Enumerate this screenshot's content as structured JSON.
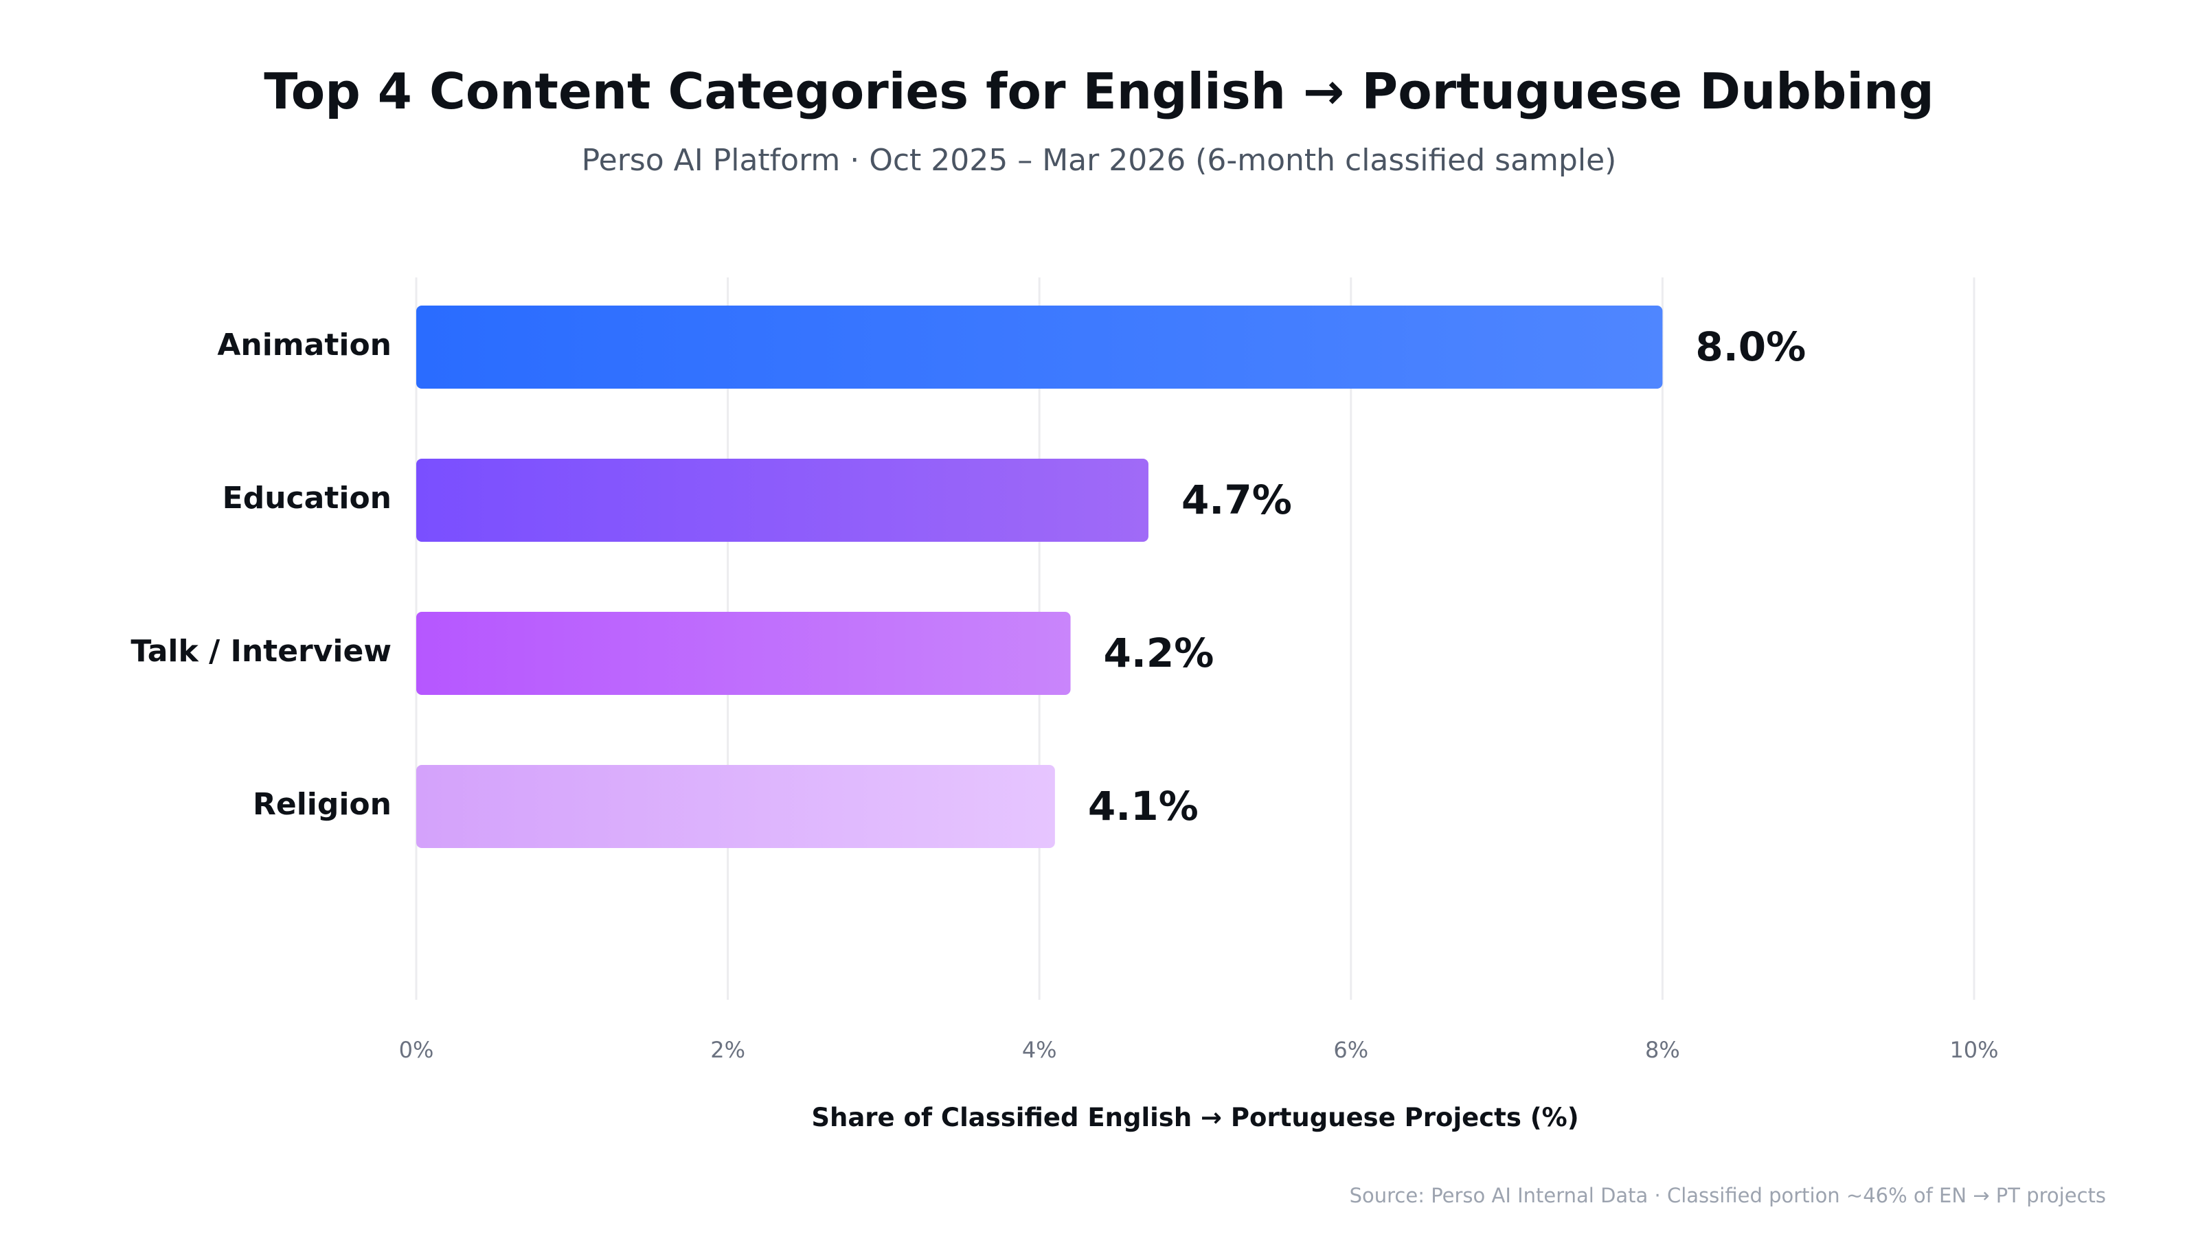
{
  "chart_data": {
    "type": "bar",
    "orientation": "horizontal",
    "title": "Top 4 Content Categories for English → Portuguese Dubbing",
    "subtitle": "Perso AI Platform · Oct 2025 – Mar 2026 (6-month classified sample)",
    "categories": [
      "Animation",
      "Education",
      "Talk / Interview",
      "Religion"
    ],
    "values": [
      8.0,
      4.7,
      4.2,
      4.1
    ],
    "value_labels": [
      "8.0%",
      "4.7%",
      "4.2%",
      "4.1%"
    ],
    "xlabel": "Share of Classified English → Portuguese Projects (%)",
    "ylabel": "",
    "xlim": [
      0,
      10
    ],
    "xticks": [
      0,
      2,
      4,
      6,
      8,
      10
    ],
    "xtick_labels": [
      "0%",
      "2%",
      "4%",
      "6%",
      "8%",
      "10%"
    ],
    "grid": "vertical",
    "bar_gradients": [
      [
        "#2a6cff",
        "#4f86ff"
      ],
      [
        "#7a4fff",
        "#a06af7"
      ],
      [
        "#b657ff",
        "#c985fb"
      ],
      [
        "#d4a2fb",
        "#e6c5ff"
      ]
    ],
    "source": "Source: Perso AI Internal Data · Classified portion ~46% of EN → PT projects"
  }
}
